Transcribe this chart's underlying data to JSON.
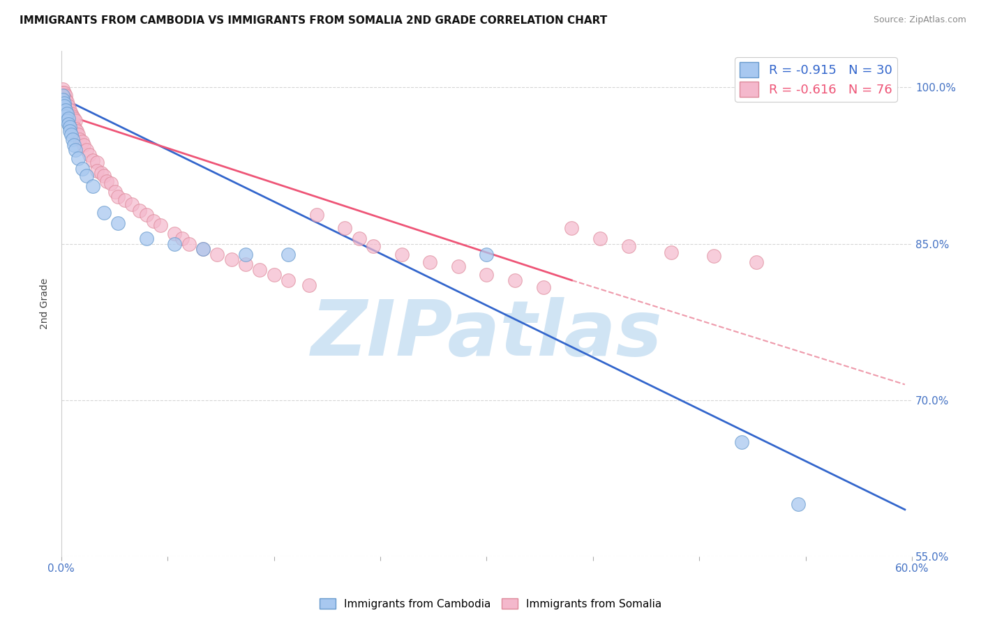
{
  "title": "IMMIGRANTS FROM CAMBODIA VS IMMIGRANTS FROM SOMALIA 2ND GRADE CORRELATION CHART",
  "source": "Source: ZipAtlas.com",
  "ylabel": "2nd Grade",
  "y_tick_positions": [
    0.55,
    0.7,
    0.85,
    1.0
  ],
  "y_tick_labels": [
    "55.0%",
    "70.0%",
    "85.0%",
    "100.0%"
  ],
  "x_min": 0.0,
  "x_max": 0.6,
  "y_min": 0.585,
  "y_max": 1.035,
  "legend_R_cambodia": "-0.915",
  "legend_N_cambodia": "30",
  "legend_R_somalia": "-0.616",
  "legend_N_somalia": "76",
  "color_cambodia_fill": "#a8c8f0",
  "color_cambodia_edge": "#6699cc",
  "color_somalia_fill": "#f4b8cc",
  "color_somalia_edge": "#dd8899",
  "color_line_cambodia": "#3366cc",
  "color_line_somalia": "#ee5577",
  "color_dashed": "#ee99aa",
  "watermark_color": "#d0e4f4",
  "background_color": "#ffffff",
  "title_fontsize": 11,
  "cam_line_x0": 0.0,
  "cam_line_y0": 0.99,
  "cam_line_x1": 0.595,
  "cam_line_y1": 0.595,
  "som_line_x0": 0.0,
  "som_line_y0": 0.975,
  "som_line_x1_solid": 0.36,
  "som_line_y1_solid": 0.815,
  "som_line_x1_dash": 0.595,
  "som_line_y1_dash": 0.715,
  "cam_scatter_x": [
    0.001,
    0.001,
    0.002,
    0.002,
    0.003,
    0.003,
    0.004,
    0.004,
    0.005,
    0.005,
    0.006,
    0.006,
    0.007,
    0.008,
    0.009,
    0.01,
    0.012,
    0.015,
    0.018,
    0.022,
    0.03,
    0.04,
    0.06,
    0.08,
    0.1,
    0.13,
    0.16,
    0.3,
    0.48,
    0.52
  ],
  "cam_scatter_y": [
    0.992,
    0.988,
    0.985,
    0.982,
    0.978,
    0.972,
    0.975,
    0.968,
    0.97,
    0.965,
    0.962,
    0.958,
    0.955,
    0.95,
    0.945,
    0.94,
    0.932,
    0.922,
    0.915,
    0.905,
    0.88,
    0.87,
    0.855,
    0.85,
    0.845,
    0.84,
    0.84,
    0.84,
    0.66,
    0.6
  ],
  "som_scatter_x": [
    0.001,
    0.001,
    0.001,
    0.001,
    0.002,
    0.002,
    0.002,
    0.002,
    0.003,
    0.003,
    0.003,
    0.004,
    0.004,
    0.004,
    0.005,
    0.005,
    0.005,
    0.006,
    0.006,
    0.007,
    0.007,
    0.008,
    0.008,
    0.009,
    0.009,
    0.01,
    0.01,
    0.011,
    0.012,
    0.013,
    0.015,
    0.016,
    0.018,
    0.02,
    0.022,
    0.025,
    0.025,
    0.028,
    0.03,
    0.032,
    0.035,
    0.038,
    0.04,
    0.045,
    0.05,
    0.055,
    0.06,
    0.065,
    0.07,
    0.08,
    0.085,
    0.09,
    0.1,
    0.11,
    0.12,
    0.13,
    0.14,
    0.15,
    0.16,
    0.175,
    0.18,
    0.2,
    0.21,
    0.22,
    0.24,
    0.26,
    0.28,
    0.3,
    0.32,
    0.34,
    0.36,
    0.38,
    0.4,
    0.43,
    0.46,
    0.49
  ],
  "som_scatter_y": [
    0.998,
    0.995,
    0.992,
    0.988,
    0.995,
    0.99,
    0.985,
    0.98,
    0.992,
    0.988,
    0.982,
    0.986,
    0.98,
    0.975,
    0.982,
    0.976,
    0.97,
    0.978,
    0.972,
    0.975,
    0.968,
    0.972,
    0.965,
    0.97,
    0.962,
    0.968,
    0.96,
    0.958,
    0.955,
    0.95,
    0.948,
    0.945,
    0.94,
    0.935,
    0.93,
    0.928,
    0.92,
    0.918,
    0.915,
    0.91,
    0.908,
    0.9,
    0.895,
    0.892,
    0.888,
    0.882,
    0.878,
    0.872,
    0.868,
    0.86,
    0.855,
    0.85,
    0.845,
    0.84,
    0.835,
    0.83,
    0.825,
    0.82,
    0.815,
    0.81,
    0.878,
    0.865,
    0.855,
    0.848,
    0.84,
    0.832,
    0.828,
    0.82,
    0.815,
    0.808,
    0.865,
    0.855,
    0.848,
    0.842,
    0.838,
    0.832
  ]
}
